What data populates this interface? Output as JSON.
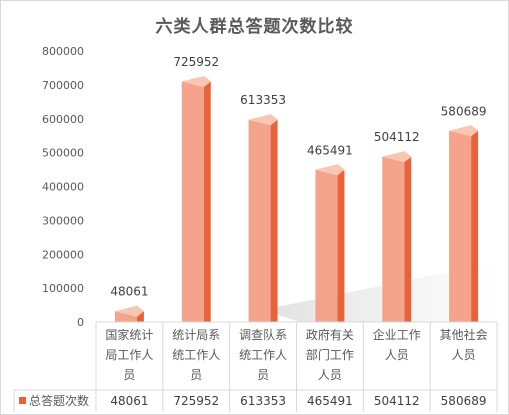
{
  "chart_data": {
    "type": "bar",
    "title": "六类人群总答题次数比较",
    "categories": [
      "国家统计局工作人员",
      "统计局系统工作人员",
      "调查队系统工作人员",
      "政府有关部门工作人员",
      "企业工作人员",
      "其他社会人员"
    ],
    "category_lines": [
      [
        "国家统计",
        "局工作人",
        "员"
      ],
      [
        "统计局系",
        "统工作人",
        "员"
      ],
      [
        "调查队系",
        "统工作人",
        "员"
      ],
      [
        "政府有关",
        "部门工作",
        "人员"
      ],
      [
        "企业工作",
        "人员"
      ],
      [
        "其他社会",
        "人员"
      ]
    ],
    "series": [
      {
        "name": "总答题次数",
        "values": [
          48061,
          725952,
          613353,
          465491,
          504112,
          580689
        ],
        "labels": [
          "48061",
          "725952",
          "613353",
          "465491",
          "504112",
          "580689"
        ]
      }
    ],
    "ylim": [
      0,
      800000
    ],
    "yticks": [
      "0",
      "100000",
      "200000",
      "300000",
      "400000",
      "500000",
      "600000",
      "700000",
      "800000"
    ],
    "grid": false,
    "legend": "data-table-left",
    "colors": {
      "front": "#F4A48A",
      "side": "#E8623A",
      "top": "#F9C6B4",
      "shadow": "#C8C8C8",
      "text": "#595959",
      "border": "#D9D9D9"
    }
  }
}
